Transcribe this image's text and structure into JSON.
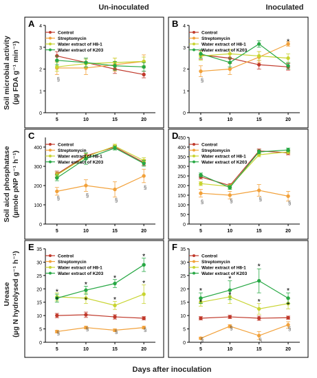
{
  "figure": {
    "column_headers": [
      "Un-inoculated",
      "Inoculated"
    ],
    "row_ylabels": [
      [
        "Soil microbial activity",
        "(µg FDA g⁻¹ min⁻¹)"
      ],
      [
        "Soil aicd phosphatase",
        "(µmole pNP g⁻¹ h⁻¹)"
      ],
      [
        "Urease",
        "(µg N hydrolysed g⁻¹ h⁻¹)"
      ]
    ],
    "xlabel": "Days after inoculation"
  },
  "colors": {
    "Control": "#c0392b",
    "Streptomycin": "#f2a13a",
    "Water extract of H8-1": "#c8d430",
    "Water extract of K203": "#27a844"
  },
  "chart_data": [
    {
      "panel": "A",
      "type": "line",
      "x": [
        5,
        10,
        15,
        20
      ],
      "xticks": [
        5,
        10,
        15,
        20
      ],
      "ylim": [
        0,
        4
      ],
      "yticks": [
        0,
        1,
        2,
        3,
        4
      ],
      "series": [
        {
          "name": "Control",
          "values": [
            2.6,
            2.3,
            2.0,
            1.75
          ],
          "err": [
            0.2,
            0.2,
            0.2,
            0.15
          ]
        },
        {
          "name": "Streptomycin",
          "values": [
            2.05,
            2.05,
            2.2,
            2.35
          ],
          "err": [
            0.3,
            0.3,
            0.3,
            0.3
          ]
        },
        {
          "name": "Water extract of H8-1",
          "values": [
            2.1,
            2.25,
            2.3,
            2.35
          ],
          "err": [
            0.2,
            0.2,
            0.2,
            0.2
          ]
        },
        {
          "name": "Water extract of K203",
          "values": [
            2.4,
            2.3,
            2.15,
            2.1
          ],
          "err": [
            0.2,
            0.2,
            0.2,
            0.2
          ]
        }
      ],
      "annotations": [
        {
          "text": "§",
          "x": 5,
          "y": 1.45
        }
      ]
    },
    {
      "panel": "B",
      "type": "line",
      "x": [
        5,
        10,
        15,
        20
      ],
      "xticks": [
        5,
        10,
        15,
        20
      ],
      "ylim": [
        0,
        4
      ],
      "yticks": [
        0,
        1,
        2,
        3,
        4
      ],
      "series": [
        {
          "name": "Control",
          "values": [
            2.65,
            2.5,
            2.2,
            2.1
          ],
          "err": [
            0.2,
            0.2,
            0.2,
            0.15
          ]
        },
        {
          "name": "Streptomycin",
          "values": [
            1.9,
            2.0,
            2.55,
            3.15
          ],
          "err": [
            0.25,
            0.25,
            0.25,
            0.1
          ]
        },
        {
          "name": "Water extract of H8-1",
          "values": [
            2.6,
            2.7,
            2.6,
            2.5
          ],
          "err": [
            0.2,
            0.2,
            0.2,
            0.2
          ]
        },
        {
          "name": "Water extract of K203",
          "values": [
            2.7,
            2.3,
            3.15,
            2.15
          ],
          "err": [
            0.2,
            0.2,
            0.15,
            0.15
          ]
        }
      ],
      "annotations": [
        {
          "text": "§",
          "x": 5,
          "y": 1.4
        },
        {
          "text": "*",
          "x": 20,
          "y": 3.3
        }
      ]
    },
    {
      "panel": "C",
      "type": "line",
      "x": [
        5,
        10,
        15,
        20
      ],
      "xticks": [
        5,
        10,
        15,
        20
      ],
      "ylim": [
        0,
        450
      ],
      "yticks": [
        0,
        100,
        200,
        300,
        400
      ],
      "series": [
        {
          "name": "Control",
          "values": [
            260,
            355,
            400,
            320
          ],
          "err": [
            15,
            15,
            10,
            15
          ]
        },
        {
          "name": "Streptomycin",
          "values": [
            170,
            200,
            180,
            250
          ],
          "err": [
            20,
            30,
            40,
            35
          ]
        },
        {
          "name": "Water extract of H8-1",
          "values": [
            255,
            350,
            405,
            330
          ],
          "err": [
            15,
            15,
            10,
            15
          ]
        },
        {
          "name": "Water extract of K203",
          "values": [
            240,
            340,
            395,
            315
          ],
          "err": [
            15,
            30,
            10,
            15
          ]
        }
      ],
      "annotations": [
        {
          "text": "§",
          "x": 5,
          "y": 125
        },
        {
          "text": "§",
          "x": 10,
          "y": 140
        },
        {
          "text": "§",
          "x": 15,
          "y": 115
        },
        {
          "text": "§",
          "x": 20,
          "y": 180
        }
      ]
    },
    {
      "panel": "D",
      "type": "line",
      "x": [
        5,
        10,
        15,
        20
      ],
      "xticks": [
        5,
        10,
        15,
        20
      ],
      "ylim": [
        0,
        450
      ],
      "yticks": [
        0,
        50,
        100,
        150,
        200,
        250,
        300,
        350,
        400,
        450
      ],
      "series": [
        {
          "name": "Control",
          "values": [
            245,
            200,
            380,
            370
          ],
          "err": [
            10,
            10,
            10,
            10
          ]
        },
        {
          "name": "Streptomycin",
          "values": [
            160,
            150,
            175,
            145
          ],
          "err": [
            20,
            20,
            30,
            25
          ]
        },
        {
          "name": "Water extract of H8-1",
          "values": [
            210,
            195,
            360,
            375
          ],
          "err": [
            10,
            10,
            10,
            10
          ]
        },
        {
          "name": "Water extract of K203",
          "values": [
            255,
            190,
            375,
            385
          ],
          "err": [
            10,
            10,
            10,
            10
          ]
        }
      ],
      "annotations": [
        {
          "text": "§",
          "x": 5,
          "y": 105
        },
        {
          "text": "§",
          "x": 10,
          "y": 110
        },
        {
          "text": "§",
          "x": 15,
          "y": 120
        },
        {
          "text": "§",
          "x": 20,
          "y": 100
        }
      ]
    },
    {
      "panel": "E",
      "type": "line",
      "x": [
        5,
        10,
        15,
        20
      ],
      "xticks": [
        5,
        10,
        15,
        20
      ],
      "ylim": [
        0,
        35
      ],
      "yticks": [
        0,
        5,
        10,
        15,
        20,
        25,
        30,
        35
      ],
      "series": [
        {
          "name": "Control",
          "values": [
            10,
            10.3,
            9.5,
            9
          ],
          "err": [
            0.8,
            1.0,
            0.8,
            0.6
          ]
        },
        {
          "name": "Streptomycin",
          "values": [
            4,
            5.5,
            4.5,
            5.5
          ],
          "err": [
            0.5,
            0.5,
            0.5,
            0.5
          ]
        },
        {
          "name": "Water extract of H8-1",
          "values": [
            17,
            16.5,
            13.8,
            18
          ],
          "err": [
            1.5,
            2.0,
            1.5,
            3.5
          ]
        },
        {
          "name": "Water extract of K203",
          "values": [
            16.5,
            19.5,
            22,
            29
          ],
          "err": [
            1.5,
            1.5,
            1.5,
            2.5
          ]
        }
      ],
      "annotations": [
        {
          "text": "*",
          "x": 5,
          "y": 19.3
        },
        {
          "text": "*",
          "x": 5,
          "y": 16.4
        },
        {
          "text": "*",
          "x": 10,
          "y": 22
        },
        {
          "text": "*",
          "x": 10,
          "y": 16.2
        },
        {
          "text": "*",
          "x": 15,
          "y": 24.4
        },
        {
          "text": "*",
          "x": 15,
          "y": 16.3
        },
        {
          "text": "*",
          "x": 20,
          "y": 32.5
        },
        {
          "text": "*",
          "x": 20,
          "y": 22.5
        },
        {
          "text": "§",
          "x": 5,
          "y": 2.7
        },
        {
          "text": "§",
          "x": 10,
          "y": 4.2
        },
        {
          "text": "§",
          "x": 15,
          "y": 3.2
        },
        {
          "text": "§",
          "x": 20,
          "y": 4.0
        }
      ]
    },
    {
      "panel": "F",
      "type": "line",
      "x": [
        5,
        10,
        15,
        20
      ],
      "xticks": [
        5,
        10,
        15,
        20
      ],
      "ylim": [
        0,
        35
      ],
      "yticks": [
        0,
        5,
        10,
        15,
        20,
        25,
        30,
        35
      ],
      "series": [
        {
          "name": "Control",
          "values": [
            9,
            9.5,
            9,
            9.2
          ],
          "err": [
            0.6,
            0.6,
            0.8,
            0.6
          ]
        },
        {
          "name": "Streptomycin",
          "values": [
            1.5,
            6,
            2.5,
            6.5
          ],
          "err": [
            0.4,
            0.6,
            1.5,
            1.2
          ]
        },
        {
          "name": "Water extract of H8-1",
          "values": [
            15,
            17,
            12.5,
            14.5
          ],
          "err": [
            1.5,
            2.5,
            2.0,
            2.0
          ]
        },
        {
          "name": "Water extract of K203",
          "values": [
            16.5,
            19.5,
            23,
            16.5
          ],
          "err": [
            2.0,
            3.5,
            4.5,
            2.0
          ]
        }
      ],
      "annotations": [
        {
          "text": "*",
          "x": 5,
          "y": 19.7
        },
        {
          "text": "*",
          "x": 5,
          "y": 15.4
        },
        {
          "text": "*",
          "x": 10,
          "y": 24.2
        },
        {
          "text": "*",
          "x": 10,
          "y": 18.2
        },
        {
          "text": "*",
          "x": 15,
          "y": 28.8
        },
        {
          "text": "*",
          "x": 15,
          "y": 15.6
        },
        {
          "text": "*",
          "x": 20,
          "y": 19.7
        },
        {
          "text": "*",
          "x": 20,
          "y": 14.4
        },
        {
          "text": "§",
          "x": 5,
          "y": 0.2
        },
        {
          "text": "§",
          "x": 10,
          "y": 4.6
        },
        {
          "text": "§",
          "x": 15,
          "y": 0.1
        },
        {
          "text": "§",
          "x": 20,
          "y": 4.4
        }
      ]
    }
  ]
}
